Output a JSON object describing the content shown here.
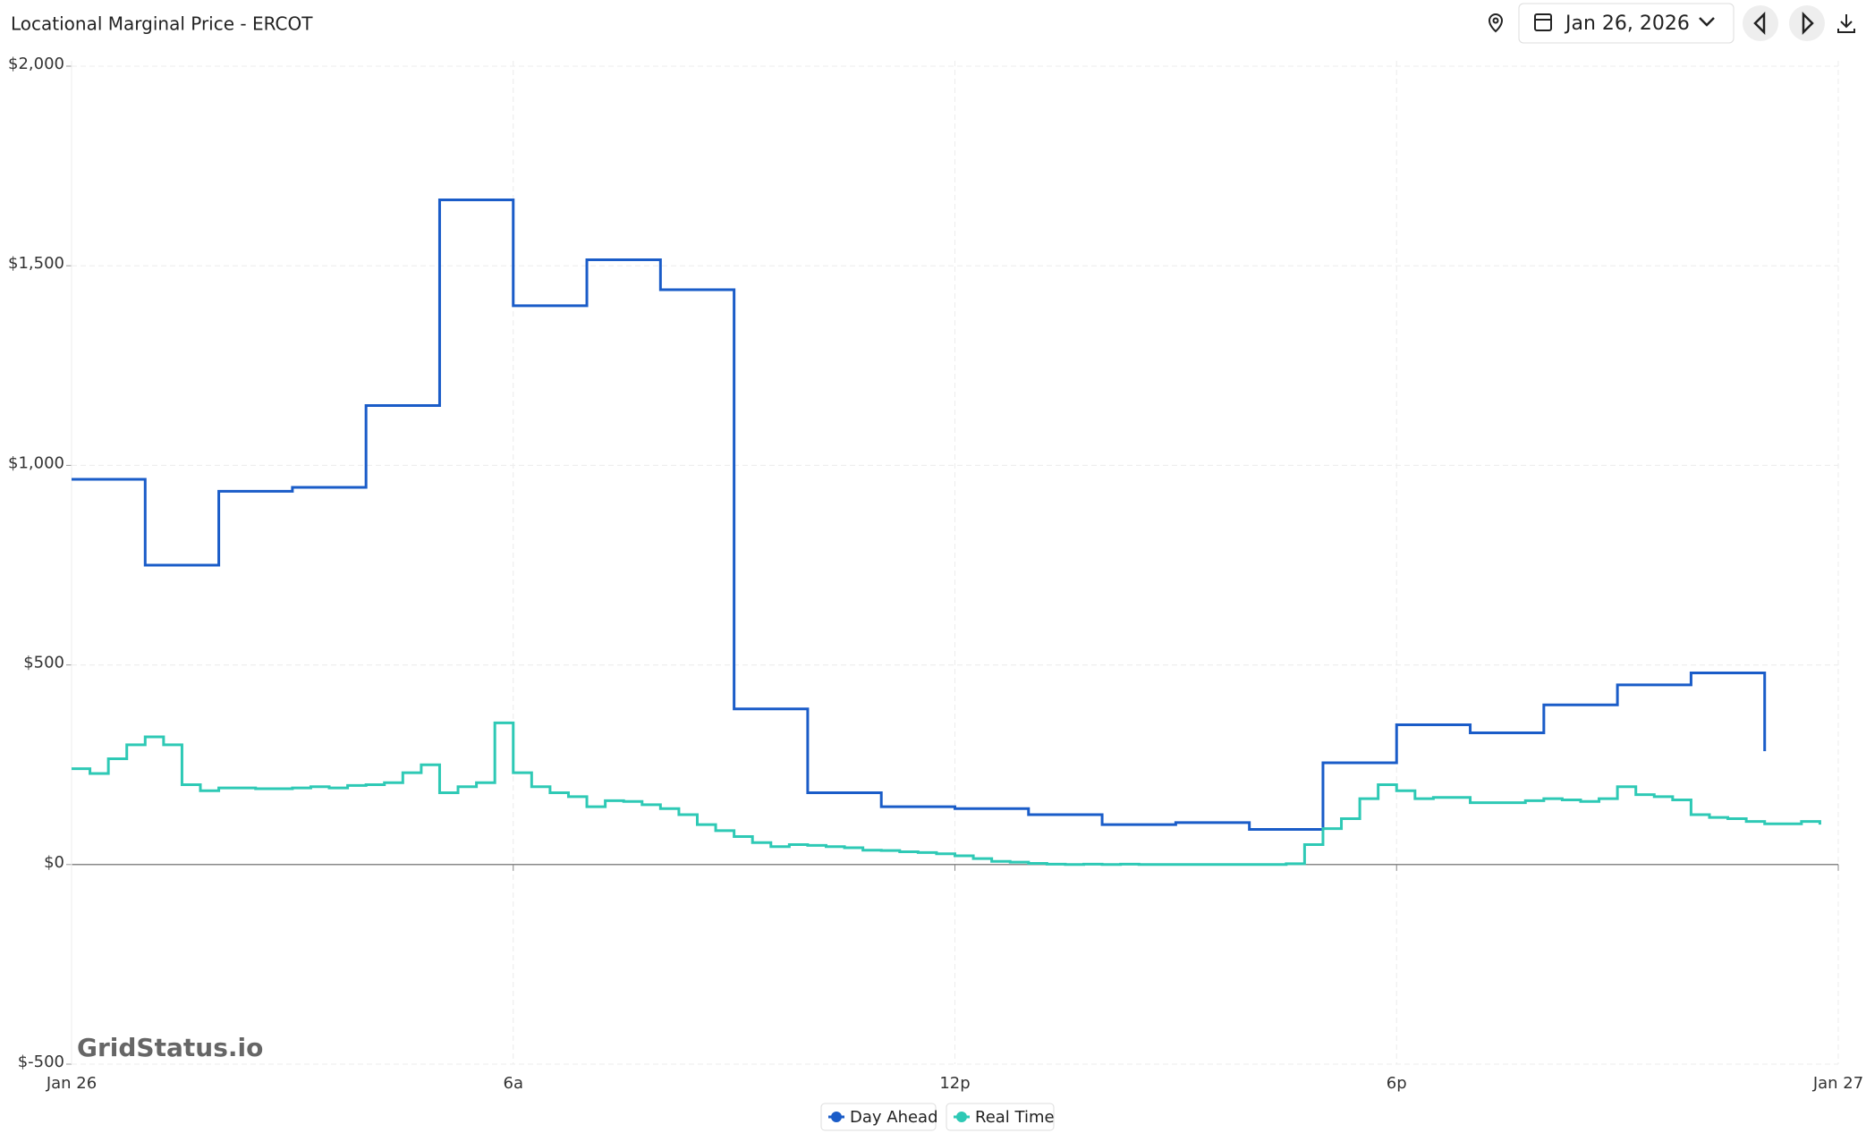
{
  "chart_data": {
    "type": "line",
    "title": "Locational Marginal Price - ERCOT",
    "date": "Jan 26, 2026",
    "watermark": "GridStatus.io",
    "step": true,
    "grid": true,
    "xlim": [
      0,
      24
    ],
    "xticks": [
      {
        "value": 0,
        "label": "Jan 26"
      },
      {
        "value": 6,
        "label": "6a"
      },
      {
        "value": 12,
        "label": "12p"
      },
      {
        "value": 18,
        "label": "6p"
      },
      {
        "value": 24,
        "label": "Jan 27"
      }
    ],
    "ylim": [
      -500,
      2000
    ],
    "yticks": [
      {
        "value": -500,
        "label": "$-500"
      },
      {
        "value": 0,
        "label": "$0"
      },
      {
        "value": 500,
        "label": "$500"
      },
      {
        "value": 1000,
        "label": "$1,000"
      },
      {
        "value": 1500,
        "label": "$1,500"
      },
      {
        "value": 2000,
        "label": "$2,000"
      }
    ],
    "series": [
      {
        "name": "Day Ahead",
        "color": "#1a5cc8",
        "x": [
          0,
          1,
          2,
          3,
          4,
          5,
          6,
          7,
          8,
          9,
          10,
          11,
          12,
          13,
          14,
          15,
          16,
          17,
          18,
          19,
          20,
          21,
          22,
          23
        ],
        "values": [
          965,
          750,
          935,
          945,
          1150,
          1665,
          1400,
          1515,
          1440,
          390,
          180,
          145,
          140,
          125,
          100,
          105,
          88,
          255,
          350,
          330,
          400,
          450,
          480,
          284
        ]
      },
      {
        "name": "Real Time",
        "color": "#2ec9b5",
        "x": [
          0,
          0.25,
          0.5,
          0.75,
          1,
          1.25,
          1.5,
          1.75,
          2,
          2.25,
          2.5,
          2.75,
          3,
          3.25,
          3.5,
          3.75,
          4,
          4.25,
          4.5,
          4.75,
          5,
          5.25,
          5.5,
          5.75,
          6,
          6.25,
          6.5,
          6.75,
          7,
          7.25,
          7.5,
          7.75,
          8,
          8.25,
          8.5,
          8.75,
          9,
          9.25,
          9.5,
          9.75,
          10,
          10.25,
          10.5,
          10.75,
          11,
          11.25,
          11.5,
          11.75,
          12,
          12.25,
          12.5,
          12.75,
          13,
          13.25,
          13.5,
          13.75,
          14,
          14.25,
          14.5,
          14.75,
          15,
          15.25,
          15.5,
          15.75,
          16,
          16.25,
          16.5,
          16.75,
          17,
          17.25,
          17.5,
          17.75,
          18,
          18.25,
          18.5,
          18.75,
          19,
          19.25,
          19.5,
          19.75,
          20,
          20.25,
          20.5,
          20.75,
          21,
          21.25,
          21.5,
          21.75,
          22,
          22.25,
          22.5,
          22.75,
          23,
          23.25,
          23.5,
          23.75
        ],
        "values": [
          240,
          228,
          265,
          300,
          320,
          300,
          200,
          185,
          192,
          192,
          190,
          190,
          192,
          195,
          192,
          198,
          200,
          205,
          230,
          250,
          180,
          195,
          205,
          355,
          230,
          195,
          180,
          170,
          145,
          160,
          158,
          150,
          140,
          125,
          100,
          85,
          70,
          55,
          45,
          50,
          48,
          45,
          42,
          36,
          35,
          32,
          30,
          27,
          22,
          15,
          8,
          6,
          3,
          1,
          0,
          1,
          0,
          1,
          0,
          0,
          0,
          0,
          0,
          0,
          0,
          0,
          2,
          50,
          90,
          115,
          165,
          200,
          185,
          165,
          168,
          168,
          155,
          155,
          155,
          160,
          165,
          162,
          158,
          165,
          195,
          175,
          170,
          162,
          125,
          118,
          115,
          108,
          102,
          102,
          108,
          100
        ]
      }
    ]
  }
}
